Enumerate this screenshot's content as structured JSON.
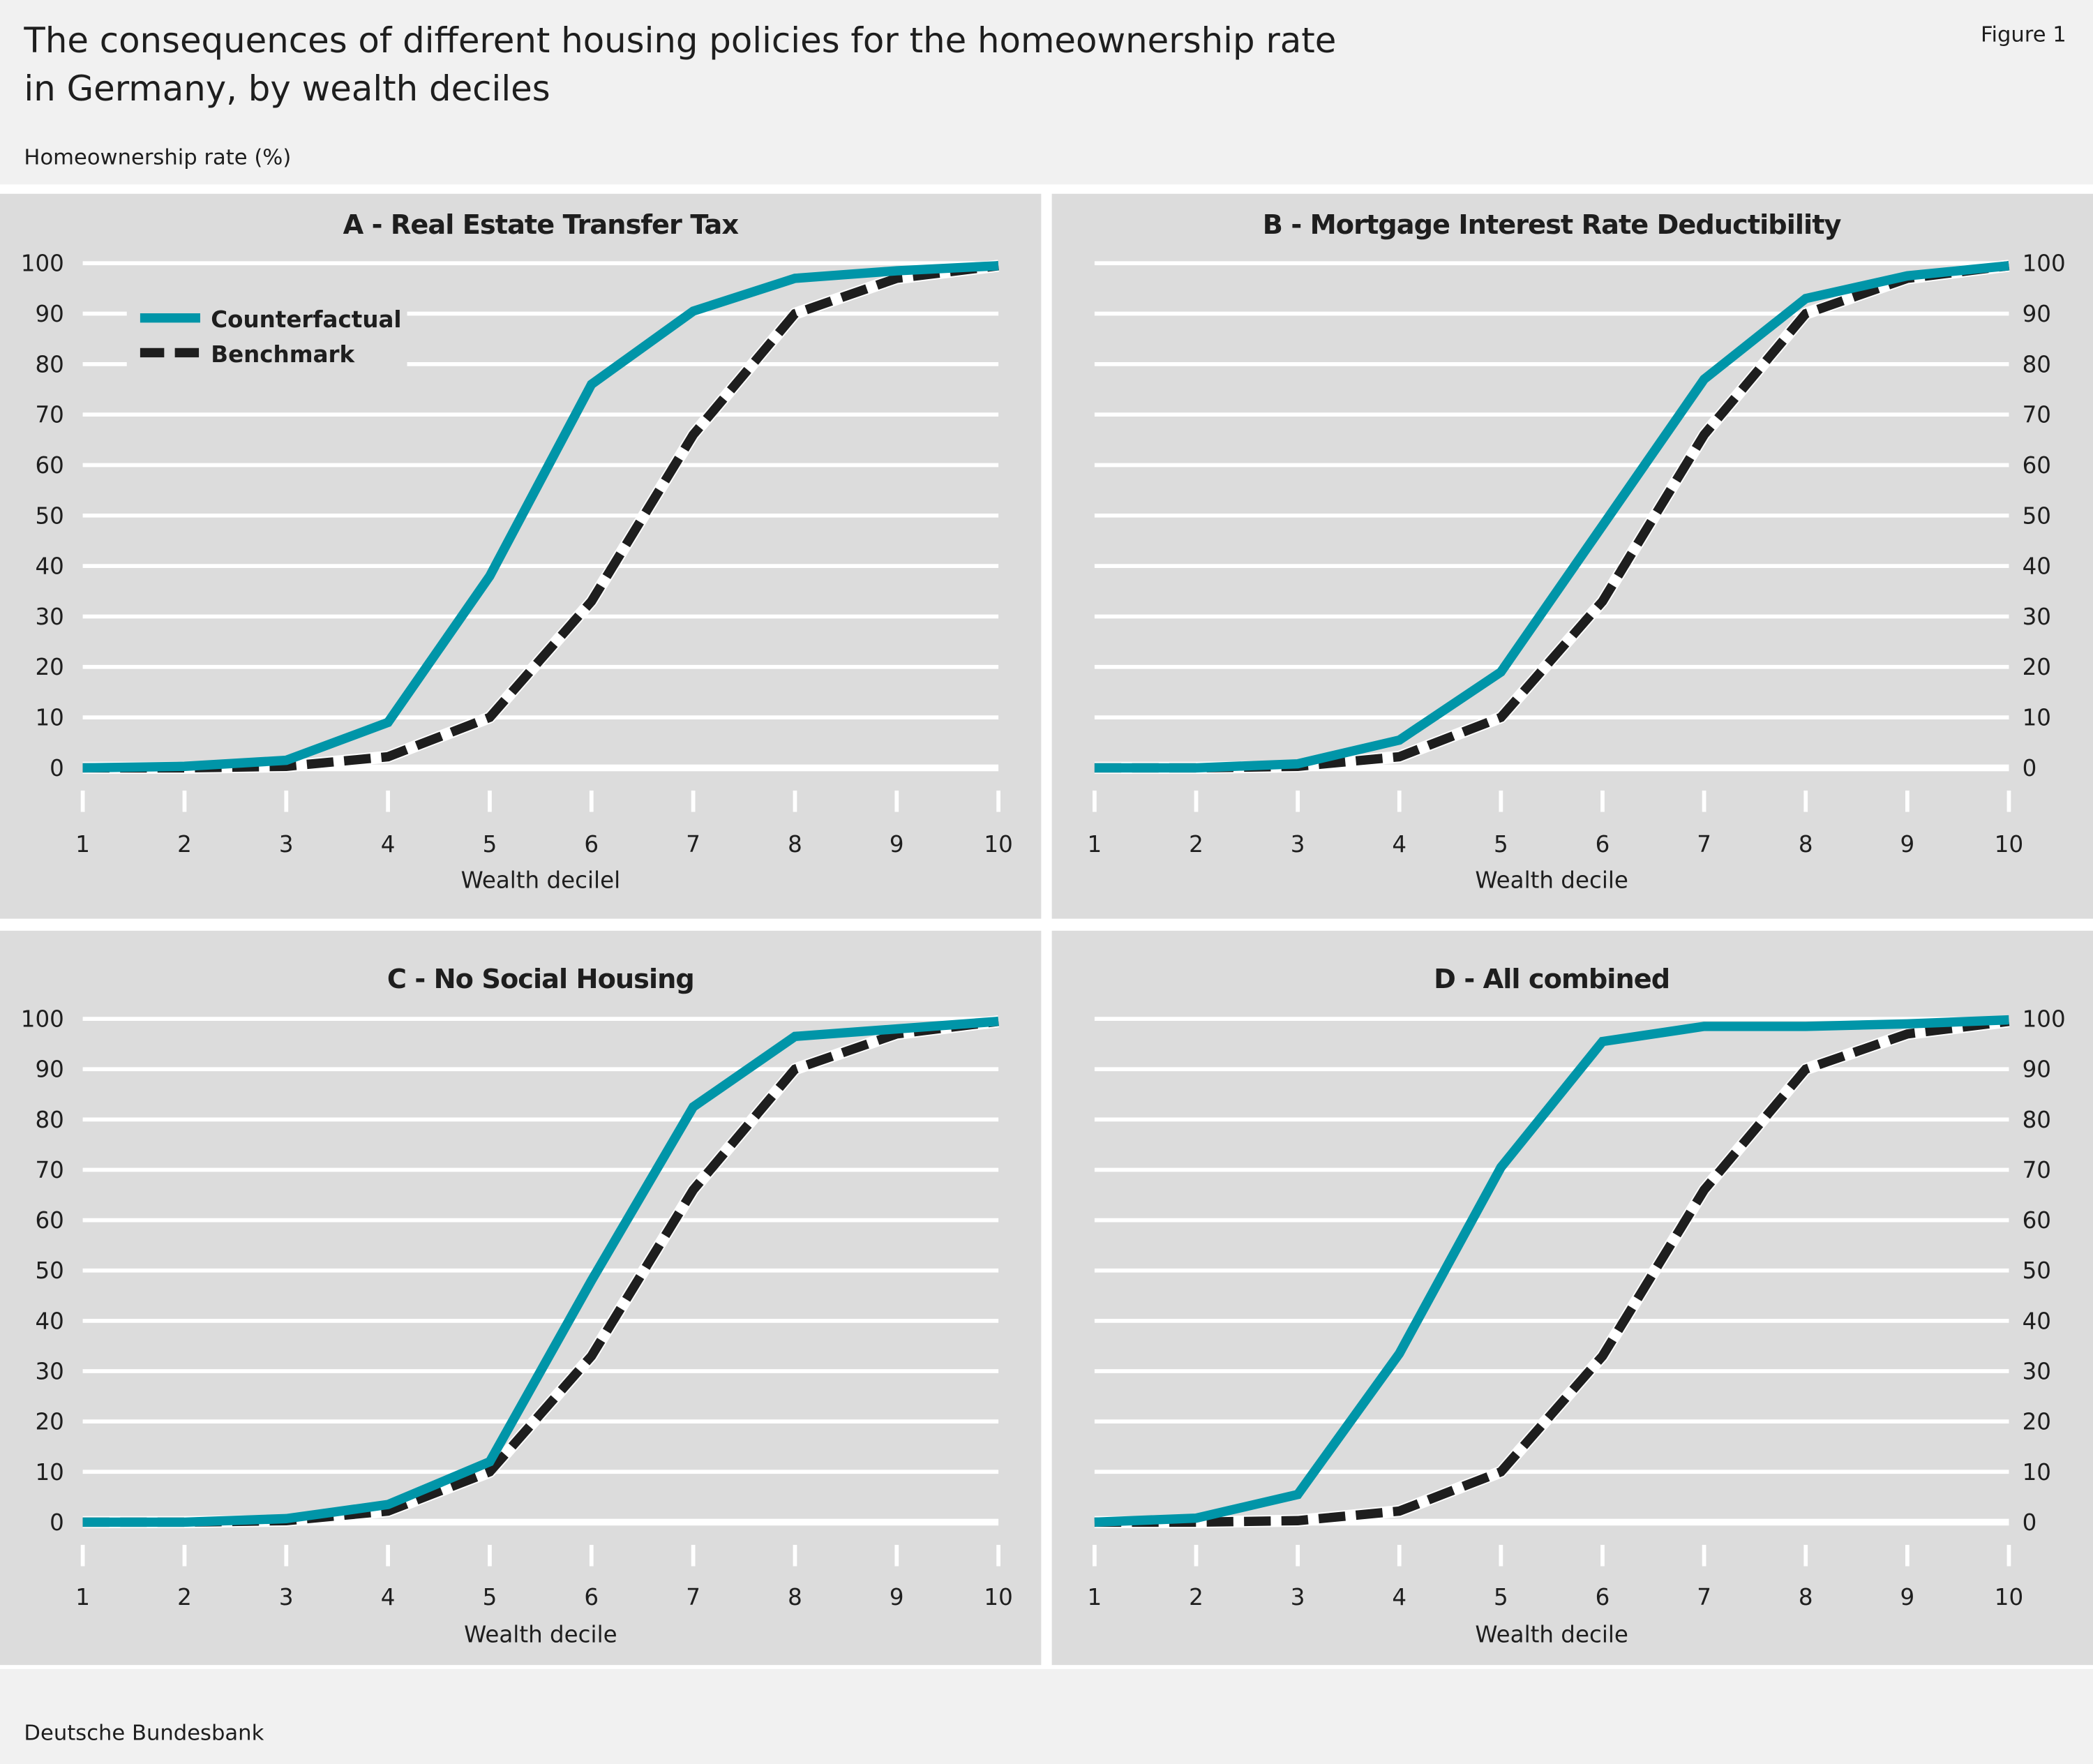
{
  "header": {
    "title_line1": "The consequences of different housing policies for the homeownership rate",
    "title_line2": "in Germany, by wealth deciles",
    "figure_label": "Figure 1",
    "y_unit_label": "Homeownership rate (%)"
  },
  "footer": {
    "source": "Deutsche Bundesbank"
  },
  "colors": {
    "counterfactual": "#0095a8",
    "benchmark": "#1e1e1e",
    "panel_bg": "#dcdcdc",
    "page_bg": "#f1f1f1"
  },
  "legend": {
    "placement": "top-left of panel A",
    "items": [
      "Counterfactual",
      "Benchmark"
    ]
  },
  "chart_data": [
    {
      "type": "line",
      "title": "A - Real Estate Transfer Tax",
      "xlabel": "Wealth decilel",
      "ylabel": "",
      "x": [
        1,
        2,
        3,
        4,
        5,
        6,
        7,
        8,
        9,
        10
      ],
      "ylim": [
        0,
        100
      ],
      "yticks": [
        0,
        10,
        20,
        30,
        40,
        50,
        60,
        70,
        80,
        90,
        100
      ],
      "y_axis_side": "left",
      "grid": true,
      "series": [
        {
          "name": "Counterfactual",
          "values": [
            0,
            0.3,
            1.5,
            9,
            38,
            76,
            90.5,
            97,
            98.5,
            99.5
          ]
        },
        {
          "name": "Benchmark",
          "values": [
            0,
            0,
            0.3,
            2.2,
            10,
            33,
            66,
            90,
            97,
            99.5
          ]
        }
      ]
    },
    {
      "type": "line",
      "title": "B - Mortgage Interest Rate Deductibility",
      "xlabel": "Wealth decile",
      "ylabel": "",
      "x": [
        1,
        2,
        3,
        4,
        5,
        6,
        7,
        8,
        9,
        10
      ],
      "ylim": [
        0,
        100
      ],
      "yticks": [
        0,
        10,
        20,
        30,
        40,
        50,
        60,
        70,
        80,
        90,
        100
      ],
      "y_axis_side": "right",
      "grid": true,
      "series": [
        {
          "name": "Counterfactual",
          "values": [
            0,
            0,
            0.8,
            5.5,
            19,
            48,
            77,
            93,
            97.5,
            99.5
          ]
        },
        {
          "name": "Benchmark",
          "values": [
            0,
            0,
            0.3,
            2.2,
            10,
            33,
            66,
            90,
            97,
            99.5
          ]
        }
      ]
    },
    {
      "type": "line",
      "title": "C - No Social Housing",
      "xlabel": "Wealth decile",
      "ylabel": "",
      "x": [
        1,
        2,
        3,
        4,
        5,
        6,
        7,
        8,
        9,
        10
      ],
      "ylim": [
        0,
        100
      ],
      "yticks": [
        0,
        10,
        20,
        30,
        40,
        50,
        60,
        70,
        80,
        90,
        100
      ],
      "y_axis_side": "left",
      "grid": true,
      "series": [
        {
          "name": "Counterfactual",
          "values": [
            0,
            0,
            0.7,
            3.5,
            12,
            48,
            82.5,
            96.5,
            98,
            99.5
          ]
        },
        {
          "name": "Benchmark",
          "values": [
            0,
            0,
            0.3,
            2.2,
            10,
            33,
            66,
            90,
            97,
            99.5
          ]
        }
      ]
    },
    {
      "type": "line",
      "title": "D - All combined",
      "xlabel": "Wealth decile",
      "ylabel": "",
      "x": [
        1,
        2,
        3,
        4,
        5,
        6,
        7,
        8,
        9,
        10
      ],
      "ylim": [
        0,
        100
      ],
      "yticks": [
        0,
        10,
        20,
        30,
        40,
        50,
        60,
        70,
        80,
        90,
        100
      ],
      "y_axis_side": "right",
      "grid": true,
      "series": [
        {
          "name": "Counterfactual",
          "values": [
            0,
            0.8,
            5.5,
            33.5,
            70.5,
            95.5,
            98.5,
            98.5,
            99,
            99.8
          ]
        },
        {
          "name": "Benchmark",
          "values": [
            0,
            0,
            0.3,
            2.2,
            10,
            33,
            66,
            90,
            97,
            99.5
          ]
        }
      ]
    }
  ]
}
